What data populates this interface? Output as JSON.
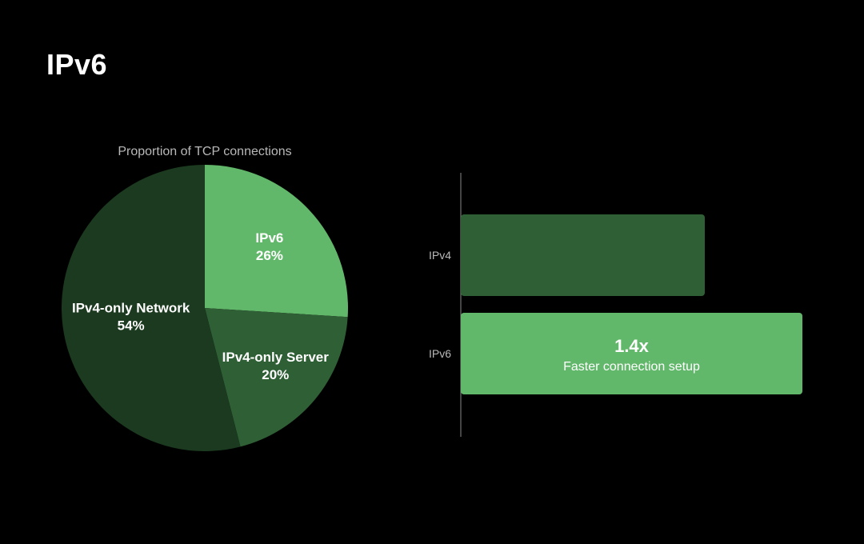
{
  "slide": {
    "title": "IPv6"
  },
  "colors": {
    "background": "#000000",
    "dark_green": "#1b3a1f",
    "mid_green": "#2f5f35",
    "light_green": "#62b86a",
    "axis": "#8a8a8a",
    "muted_text": "#b9b9b9"
  },
  "chart_data": [
    {
      "type": "pie",
      "title": "Proportion of TCP connections",
      "slices": [
        {
          "label": "IPv6",
          "value": 26,
          "display": "26%",
          "color": "#62b86a"
        },
        {
          "label": "IPv4-only Server",
          "value": 20,
          "display": "20%",
          "color": "#2f5f35"
        },
        {
          "label": "IPv4-only Network",
          "value": 54,
          "display": "54%",
          "color": "#1b3a1f"
        }
      ],
      "start": "12 o'clock",
      "direction": "clockwise"
    },
    {
      "type": "bar",
      "orientation": "horizontal",
      "categories": [
        "IPv4",
        "IPv6"
      ],
      "values": [
        1.0,
        1.4
      ],
      "colors": [
        "#2f5f35",
        "#62b86a"
      ],
      "annotation": {
        "category": "IPv6",
        "value_text": "1.4x",
        "caption": "Faster connection setup"
      }
    }
  ]
}
